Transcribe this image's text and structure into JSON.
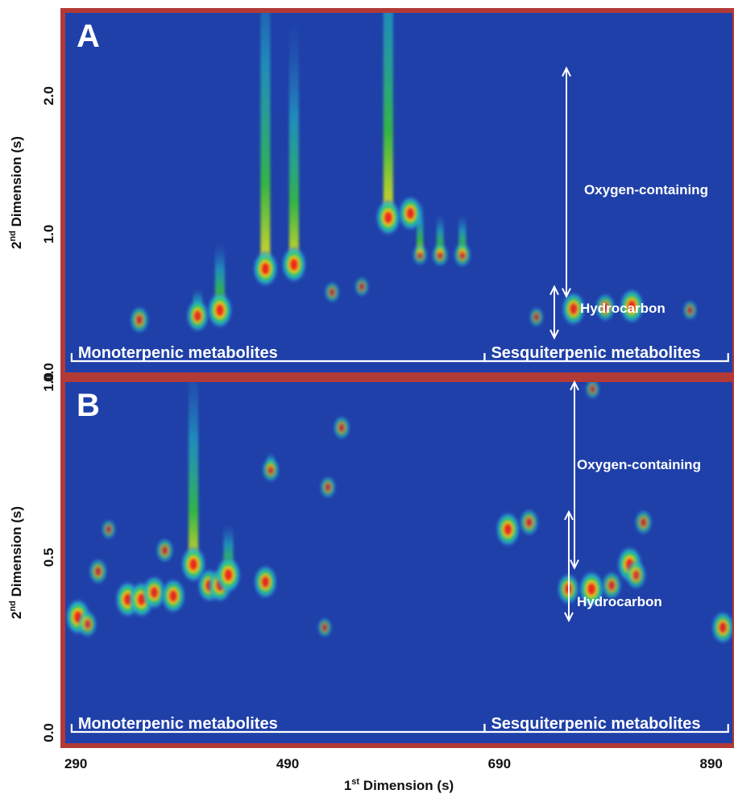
{
  "chart_data": [
    {
      "type": "heatmap",
      "panel_label": "A",
      "ylabel_main": "2",
      "ylabel_sup": "nd",
      "ylabel_rest": " Dimension (s)",
      "yticks": [
        {
          "value": 0.0,
          "label": "0.0"
        },
        {
          "value": 1.0,
          "label": "1.0"
        },
        {
          "value": 2.0,
          "label": "2.0"
        }
      ],
      "ylim": [
        0.0,
        2.6
      ],
      "xlim": [
        280,
        910
      ],
      "groups": [
        {
          "label": "Monoterpenic metabolites",
          "x_range": [
            286,
            676
          ]
        },
        {
          "label": "Sesquiterpenic metabolites",
          "x_range": [
            676,
            906
          ]
        }
      ],
      "regions": [
        {
          "label": "Oxygen-containing",
          "y_range": [
            0.55,
            2.2
          ]
        },
        {
          "label": "Hydrocarbon",
          "y_range": [
            0.25,
            0.62
          ]
        }
      ],
      "peaks": [
        {
          "x": 350,
          "y": 0.38,
          "intensity": 0.6,
          "streak": 0
        },
        {
          "x": 405,
          "y": 0.41,
          "intensity": 0.85,
          "streak": 0.2
        },
        {
          "x": 426,
          "y": 0.45,
          "intensity": 1.0,
          "streak": 0.5
        },
        {
          "x": 469,
          "y": 0.75,
          "intensity": 1.0,
          "streak": 2.5
        },
        {
          "x": 496,
          "y": 0.78,
          "intensity": 1.0,
          "streak": 1.8
        },
        {
          "x": 585,
          "y": 1.12,
          "intensity": 1.0,
          "streak": 2.5
        },
        {
          "x": 606,
          "y": 1.15,
          "intensity": 0.95,
          "streak": 0
        },
        {
          "x": 615,
          "y": 0.85,
          "intensity": 0.35,
          "streak": 0.4
        },
        {
          "x": 634,
          "y": 0.85,
          "intensity": 0.45,
          "streak": 0.3
        },
        {
          "x": 655,
          "y": 0.85,
          "intensity": 0.5,
          "streak": 0.3
        },
        {
          "x": 532,
          "y": 0.58,
          "intensity": 0.35,
          "streak": 0
        },
        {
          "x": 560,
          "y": 0.62,
          "intensity": 0.3,
          "streak": 0
        },
        {
          "x": 760,
          "y": 0.46,
          "intensity": 0.9,
          "streak": 0
        },
        {
          "x": 790,
          "y": 0.47,
          "intensity": 0.65,
          "streak": 0
        },
        {
          "x": 815,
          "y": 0.48,
          "intensity": 0.95,
          "streak": 0
        },
        {
          "x": 725,
          "y": 0.4,
          "intensity": 0.3,
          "streak": 0
        },
        {
          "x": 870,
          "y": 0.45,
          "intensity": 0.3,
          "streak": 0
        }
      ]
    },
    {
      "type": "heatmap",
      "panel_label": "B",
      "ylabel_main": "2",
      "ylabel_sup": "nd",
      "ylabel_rest": " Dimension (s)",
      "yticks": [
        {
          "value": 0.0,
          "label": "0.0"
        },
        {
          "value": 0.5,
          "label": "0.5"
        },
        {
          "value": 1.0,
          "label": "1.0"
        }
      ],
      "ylim": [
        -0.03,
        1.0
      ],
      "xlim": [
        280,
        910
      ],
      "xlabel_main": "1",
      "xlabel_sup": "st",
      "xlabel_rest": " Dimension (s)",
      "xticks": [
        {
          "value": 290,
          "label": "290"
        },
        {
          "value": 490,
          "label": "490"
        },
        {
          "value": 690,
          "label": "690"
        },
        {
          "value": 890,
          "label": "890"
        }
      ],
      "groups": [
        {
          "label": "Monoterpenic metabolites",
          "x_range": [
            286,
            676
          ]
        },
        {
          "label": "Sesquiterpenic metabolites",
          "x_range": [
            676,
            906
          ]
        }
      ],
      "regions": [
        {
          "label": "Oxygen-containing",
          "y_range": [
            0.47,
            1.0
          ]
        },
        {
          "label": "Hydrocarbon",
          "y_range": [
            0.32,
            0.63
          ]
        }
      ],
      "peaks": [
        {
          "x": 292,
          "y": 0.33,
          "intensity": 1.0,
          "streak": 0.05
        },
        {
          "x": 301,
          "y": 0.31,
          "intensity": 0.6,
          "streak": 0
        },
        {
          "x": 311,
          "y": 0.46,
          "intensity": 0.55,
          "streak": 0
        },
        {
          "x": 339,
          "y": 0.38,
          "intensity": 1.0,
          "streak": 0.05
        },
        {
          "x": 352,
          "y": 0.38,
          "intensity": 1.0,
          "streak": 0
        },
        {
          "x": 364,
          "y": 0.4,
          "intensity": 0.9,
          "streak": 0
        },
        {
          "x": 374,
          "y": 0.52,
          "intensity": 0.5,
          "streak": 0
        },
        {
          "x": 382,
          "y": 0.39,
          "intensity": 0.95,
          "streak": 0
        },
        {
          "x": 401,
          "y": 0.48,
          "intensity": 1.0,
          "streak": 0.6
        },
        {
          "x": 416,
          "y": 0.42,
          "intensity": 0.9,
          "streak": 0
        },
        {
          "x": 426,
          "y": 0.42,
          "intensity": 0.9,
          "streak": 0
        },
        {
          "x": 434,
          "y": 0.45,
          "intensity": 1.0,
          "streak": 0.15
        },
        {
          "x": 469,
          "y": 0.43,
          "intensity": 0.9,
          "streak": 0
        },
        {
          "x": 474,
          "y": 0.75,
          "intensity": 0.5,
          "streak": 0.05
        },
        {
          "x": 528,
          "y": 0.7,
          "intensity": 0.4,
          "streak": 0
        },
        {
          "x": 541,
          "y": 0.87,
          "intensity": 0.45,
          "streak": 0
        },
        {
          "x": 525,
          "y": 0.3,
          "intensity": 0.3,
          "streak": 0
        },
        {
          "x": 321,
          "y": 0.58,
          "intensity": 0.3,
          "streak": 0
        },
        {
          "x": 698,
          "y": 0.58,
          "intensity": 0.95,
          "streak": 0
        },
        {
          "x": 718,
          "y": 0.6,
          "intensity": 0.6,
          "streak": 0
        },
        {
          "x": 755,
          "y": 0.41,
          "intensity": 0.8,
          "streak": 0
        },
        {
          "x": 777,
          "y": 0.41,
          "intensity": 1.0,
          "streak": 0
        },
        {
          "x": 796,
          "y": 0.42,
          "intensity": 0.65,
          "streak": 0
        },
        {
          "x": 813,
          "y": 0.48,
          "intensity": 1.0,
          "streak": 0
        },
        {
          "x": 819,
          "y": 0.45,
          "intensity": 0.7,
          "streak": 0
        },
        {
          "x": 826,
          "y": 0.6,
          "intensity": 0.5,
          "streak": 0
        },
        {
          "x": 778,
          "y": 0.98,
          "intensity": 0.3,
          "streak": 0
        },
        {
          "x": 901,
          "y": 0.3,
          "intensity": 0.85,
          "streak": 0
        }
      ]
    }
  ],
  "colors": {
    "background": "#1f40a8",
    "frame": "#b23a36",
    "annotation": "#ffffff",
    "heat_low": "#2f6fd0",
    "heat_mid": "#22c8c8",
    "heat_high": "#36c23a",
    "heat_peak": "#f0e020",
    "heat_max": "#ec2a1c"
  }
}
